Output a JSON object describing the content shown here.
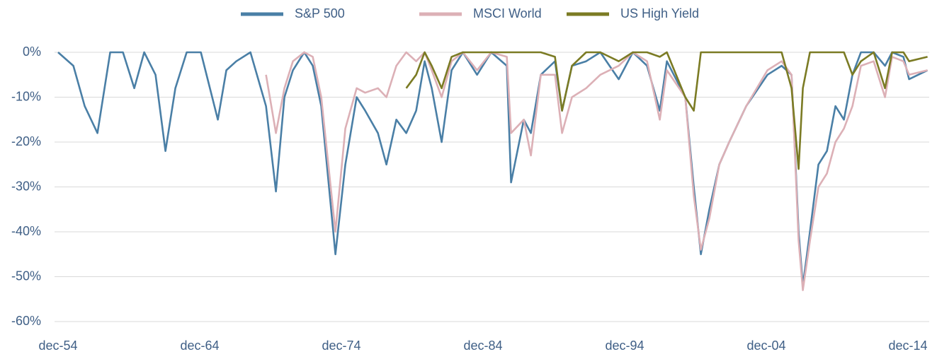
{
  "chart_data": {
    "type": "line",
    "x": [
      1954.92,
      1956.0,
      1956.8,
      1957.7,
      1958.6,
      1959.5,
      1960.3,
      1961.0,
      1961.8,
      1962.5,
      1963.2,
      1964.0,
      1965.0,
      1966.2,
      1966.8,
      1967.5,
      1968.5,
      1969.6,
      1970.3,
      1970.9,
      1971.5,
      1972.3,
      1972.9,
      1973.5,
      1974.5,
      1975.2,
      1976.0,
      1976.6,
      1977.5,
      1978.1,
      1978.8,
      1979.5,
      1980.2,
      1980.8,
      1981.3,
      1982.0,
      1982.7,
      1983.5,
      1984.5,
      1985.5,
      1986.6,
      1986.9,
      1987.8,
      1988.3,
      1989.0,
      1990.0,
      1990.5,
      1991.2,
      1992.2,
      1993.2,
      1994.5,
      1995.5,
      1996.5,
      1997.4,
      1997.9,
      1999.2,
      1999.8,
      2000.3,
      2000.9,
      2001.6,
      2002.3,
      2003.5,
      2005.0,
      2006.0,
      2006.7,
      2007.2,
      2007.5,
      2008.0,
      2008.6,
      2009.2,
      2009.8,
      2010.4,
      2011.0,
      2011.6,
      2012.5,
      2013.3,
      2013.8,
      2014.6,
      2015.0,
      2016.3
    ],
    "series": [
      {
        "name": "S&P 500",
        "color": "#4a7fa6",
        "values": [
          0,
          -3,
          -12,
          -18,
          0,
          0,
          -8,
          0,
          -5,
          -22,
          -8,
          0,
          0,
          -15,
          -4,
          -2,
          0,
          -12,
          -31,
          -10,
          -4,
          0,
          -3,
          -12,
          -45,
          -25,
          -10,
          -13,
          -18,
          -25,
          -15,
          -18,
          -13,
          -2,
          -8,
          -20,
          -4,
          0,
          -5,
          0,
          -3,
          -29,
          -15,
          -18,
          -5,
          -2,
          -13,
          -3,
          -2,
          0,
          -6,
          0,
          -3,
          -13,
          -2,
          -10,
          -30,
          -45,
          -35,
          -25,
          -20,
          -12,
          -5,
          -3,
          -5,
          -40,
          -52,
          -40,
          -25,
          -22,
          -12,
          -15,
          -5,
          0,
          0,
          -3,
          0,
          -1,
          -6,
          -4
        ]
      },
      {
        "name": "MSCI World",
        "color": "#dcb0b6",
        "values": [
          null,
          null,
          null,
          null,
          null,
          null,
          null,
          null,
          null,
          null,
          null,
          null,
          null,
          null,
          null,
          null,
          null,
          -5,
          -18,
          -8,
          -2,
          0,
          -1,
          -10,
          -40,
          -17,
          -8,
          -9,
          -8,
          -10,
          -3,
          0,
          -2,
          0,
          -4,
          -10,
          -2,
          0,
          -4,
          0,
          -1,
          -18,
          -15,
          -23,
          -5,
          -5,
          -18,
          -10,
          -8,
          -5,
          -3,
          0,
          -2,
          -15,
          -4,
          -10,
          -32,
          -44,
          -37,
          -25,
          -20,
          -12,
          -4,
          -2,
          -5,
          -42,
          -53,
          -42,
          -30,
          -27,
          -20,
          -17,
          -12,
          -3,
          -2,
          -10,
          -1,
          -2,
          -5,
          -4
        ]
      },
      {
        "name": "US High Yield",
        "color": "#7b7b24",
        "values": [
          null,
          null,
          null,
          null,
          null,
          null,
          null,
          null,
          null,
          null,
          null,
          null,
          null,
          null,
          null,
          null,
          null,
          null,
          null,
          null,
          null,
          null,
          null,
          null,
          null,
          null,
          null,
          null,
          null,
          null,
          null,
          -8,
          -5,
          0,
          -3,
          -8,
          -1,
          0,
          0,
          0,
          0,
          0,
          0,
          0,
          0,
          -1,
          -13,
          -3,
          0,
          0,
          -2,
          0,
          0,
          -1,
          0,
          -10,
          -13,
          0,
          0,
          0,
          0,
          0,
          0,
          0,
          -8,
          -26,
          -8,
          0,
          0,
          0,
          0,
          0,
          -5,
          -2,
          0,
          -8,
          0,
          0,
          -2,
          -1
        ]
      }
    ],
    "xlim": [
      1954.92,
      2016.42
    ],
    "xticks": [
      {
        "value": 1954.92,
        "label": "dec-54"
      },
      {
        "value": 1964.92,
        "label": "dec-64"
      },
      {
        "value": 1974.92,
        "label": "dec-74"
      },
      {
        "value": 1984.92,
        "label": "dec-84"
      },
      {
        "value": 1994.92,
        "label": "dec-94"
      },
      {
        "value": 2004.92,
        "label": "dec-04"
      },
      {
        "value": 2014.92,
        "label": "dec-14"
      }
    ],
    "ylim": [
      -60,
      0
    ],
    "yticks": [
      {
        "value": 0,
        "label": "0%"
      },
      {
        "value": -10,
        "label": "-10%"
      },
      {
        "value": -20,
        "label": "-20%"
      },
      {
        "value": -30,
        "label": "-30%"
      },
      {
        "value": -40,
        "label": "-40%"
      },
      {
        "value": -50,
        "label": "-50%"
      },
      {
        "value": -60,
        "label": "-60%"
      }
    ],
    "grid": true,
    "legend": "top"
  }
}
